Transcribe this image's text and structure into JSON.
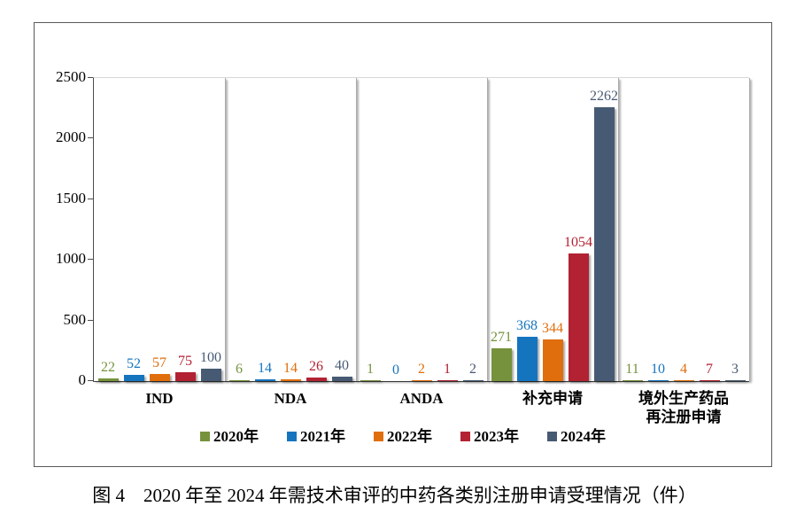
{
  "figure": {
    "caption": "图 4　2020 年至 2024 年需技术审评的中药各类别注册申请受理情况（件）"
  },
  "chart_data": {
    "type": "bar",
    "title": "",
    "categories": [
      "IND",
      "NDA",
      "ANDA",
      "补充申请",
      "境外生产药品再注册申请"
    ],
    "category_label_lines": [
      [
        "IND"
      ],
      [
        "NDA"
      ],
      [
        "ANDA"
      ],
      [
        "补充申请"
      ],
      [
        "境外生产药品",
        "再注册申请"
      ]
    ],
    "series": [
      {
        "name": "2020年",
        "color": "#76923C",
        "values": [
          22,
          6,
          1,
          271,
          11
        ]
      },
      {
        "name": "2021年",
        "color": "#1574BE",
        "values": [
          52,
          14,
          0,
          368,
          10
        ]
      },
      {
        "name": "2022年",
        "color": "#E06E0C",
        "values": [
          57,
          14,
          2,
          344,
          4
        ]
      },
      {
        "name": "2023年",
        "color": "#B22232",
        "values": [
          75,
          26,
          1,
          1054,
          7
        ]
      },
      {
        "name": "2024年",
        "color": "#475A73",
        "values": [
          100,
          40,
          2,
          2262,
          3
        ]
      }
    ],
    "y_axis": {
      "min": 0,
      "max": 2500,
      "ticks": [
        0,
        500,
        1000,
        1500,
        2000,
        2500
      ]
    },
    "legend": {
      "position": "bottom",
      "entries": [
        "2020年",
        "2021年",
        "2022年",
        "2023年",
        "2024年"
      ]
    },
    "data_labels": true,
    "gridlines": "vertical category separators only",
    "colors": {
      "axis": "#4D4D4D",
      "separator": "#ABABAB",
      "frame_border": "#595959",
      "plot_top_line": "#D9D9D9",
      "label_text": "#000000"
    }
  }
}
